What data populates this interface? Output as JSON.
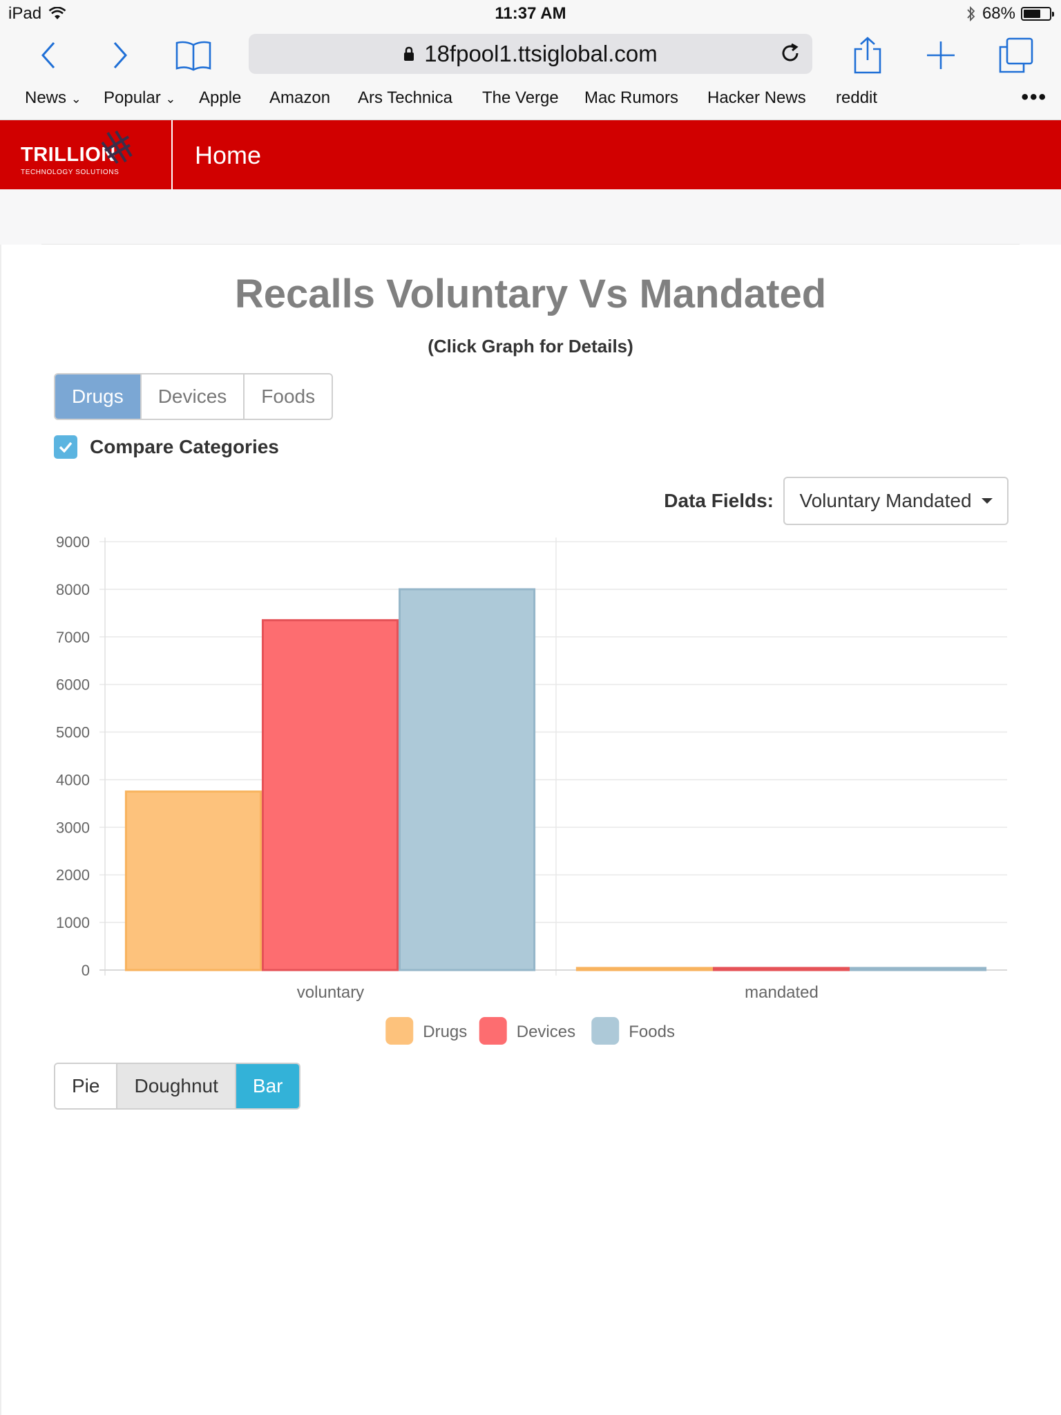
{
  "status_bar": {
    "device": "iPad",
    "time": "11:37 AM",
    "battery": "68%",
    "battery_level": 0.68
  },
  "browser": {
    "url": "18fpool1.ttsiglobal.com",
    "bookmarks": [
      "News",
      "Popular",
      "Apple",
      "Amazon",
      "Ars Technica",
      "The Verge",
      "Mac Rumors",
      "Hacker News",
      "reddit"
    ]
  },
  "app": {
    "brand": "TRILLION",
    "tagline": "TECHNOLOGY SOLUTIONS",
    "page_title": "Home",
    "accent_color": "#d10000"
  },
  "content": {
    "title": "Recalls Voluntary Vs Mandated",
    "subtitle": "(Click Graph for Details)",
    "category_tabs": [
      "Drugs",
      "Devices",
      "Foods"
    ],
    "active_category": "Drugs",
    "compare_label": "Compare Categories",
    "compare_checked": true,
    "data_fields_label": "Data Fields:",
    "data_fields_value": "Voluntary Mandated",
    "chart_types": [
      "Pie",
      "Doughnut",
      "Bar"
    ],
    "active_chart_type": "Bar"
  },
  "chart_data": {
    "type": "bar",
    "title": "Recalls Voluntary Vs Mandated",
    "categories": [
      "voluntary",
      "mandated"
    ],
    "series": [
      {
        "name": "Drugs",
        "values": [
          3750,
          20
        ],
        "color": "#fdc27c",
        "border": "#f8b35e"
      },
      {
        "name": "Devices",
        "values": [
          7350,
          30
        ],
        "color": "#fd6d70",
        "border": "#e55257"
      },
      {
        "name": "Foods",
        "values": [
          8000,
          25
        ],
        "color": "#adc9d8",
        "border": "#95b6c9"
      }
    ],
    "ylim": [
      0,
      9000
    ],
    "yticks": [
      "0",
      "1000",
      "2000",
      "3000",
      "4000",
      "5000",
      "6000",
      "7000",
      "8000",
      "9000"
    ],
    "legend_position": "bottom",
    "grid": true
  }
}
